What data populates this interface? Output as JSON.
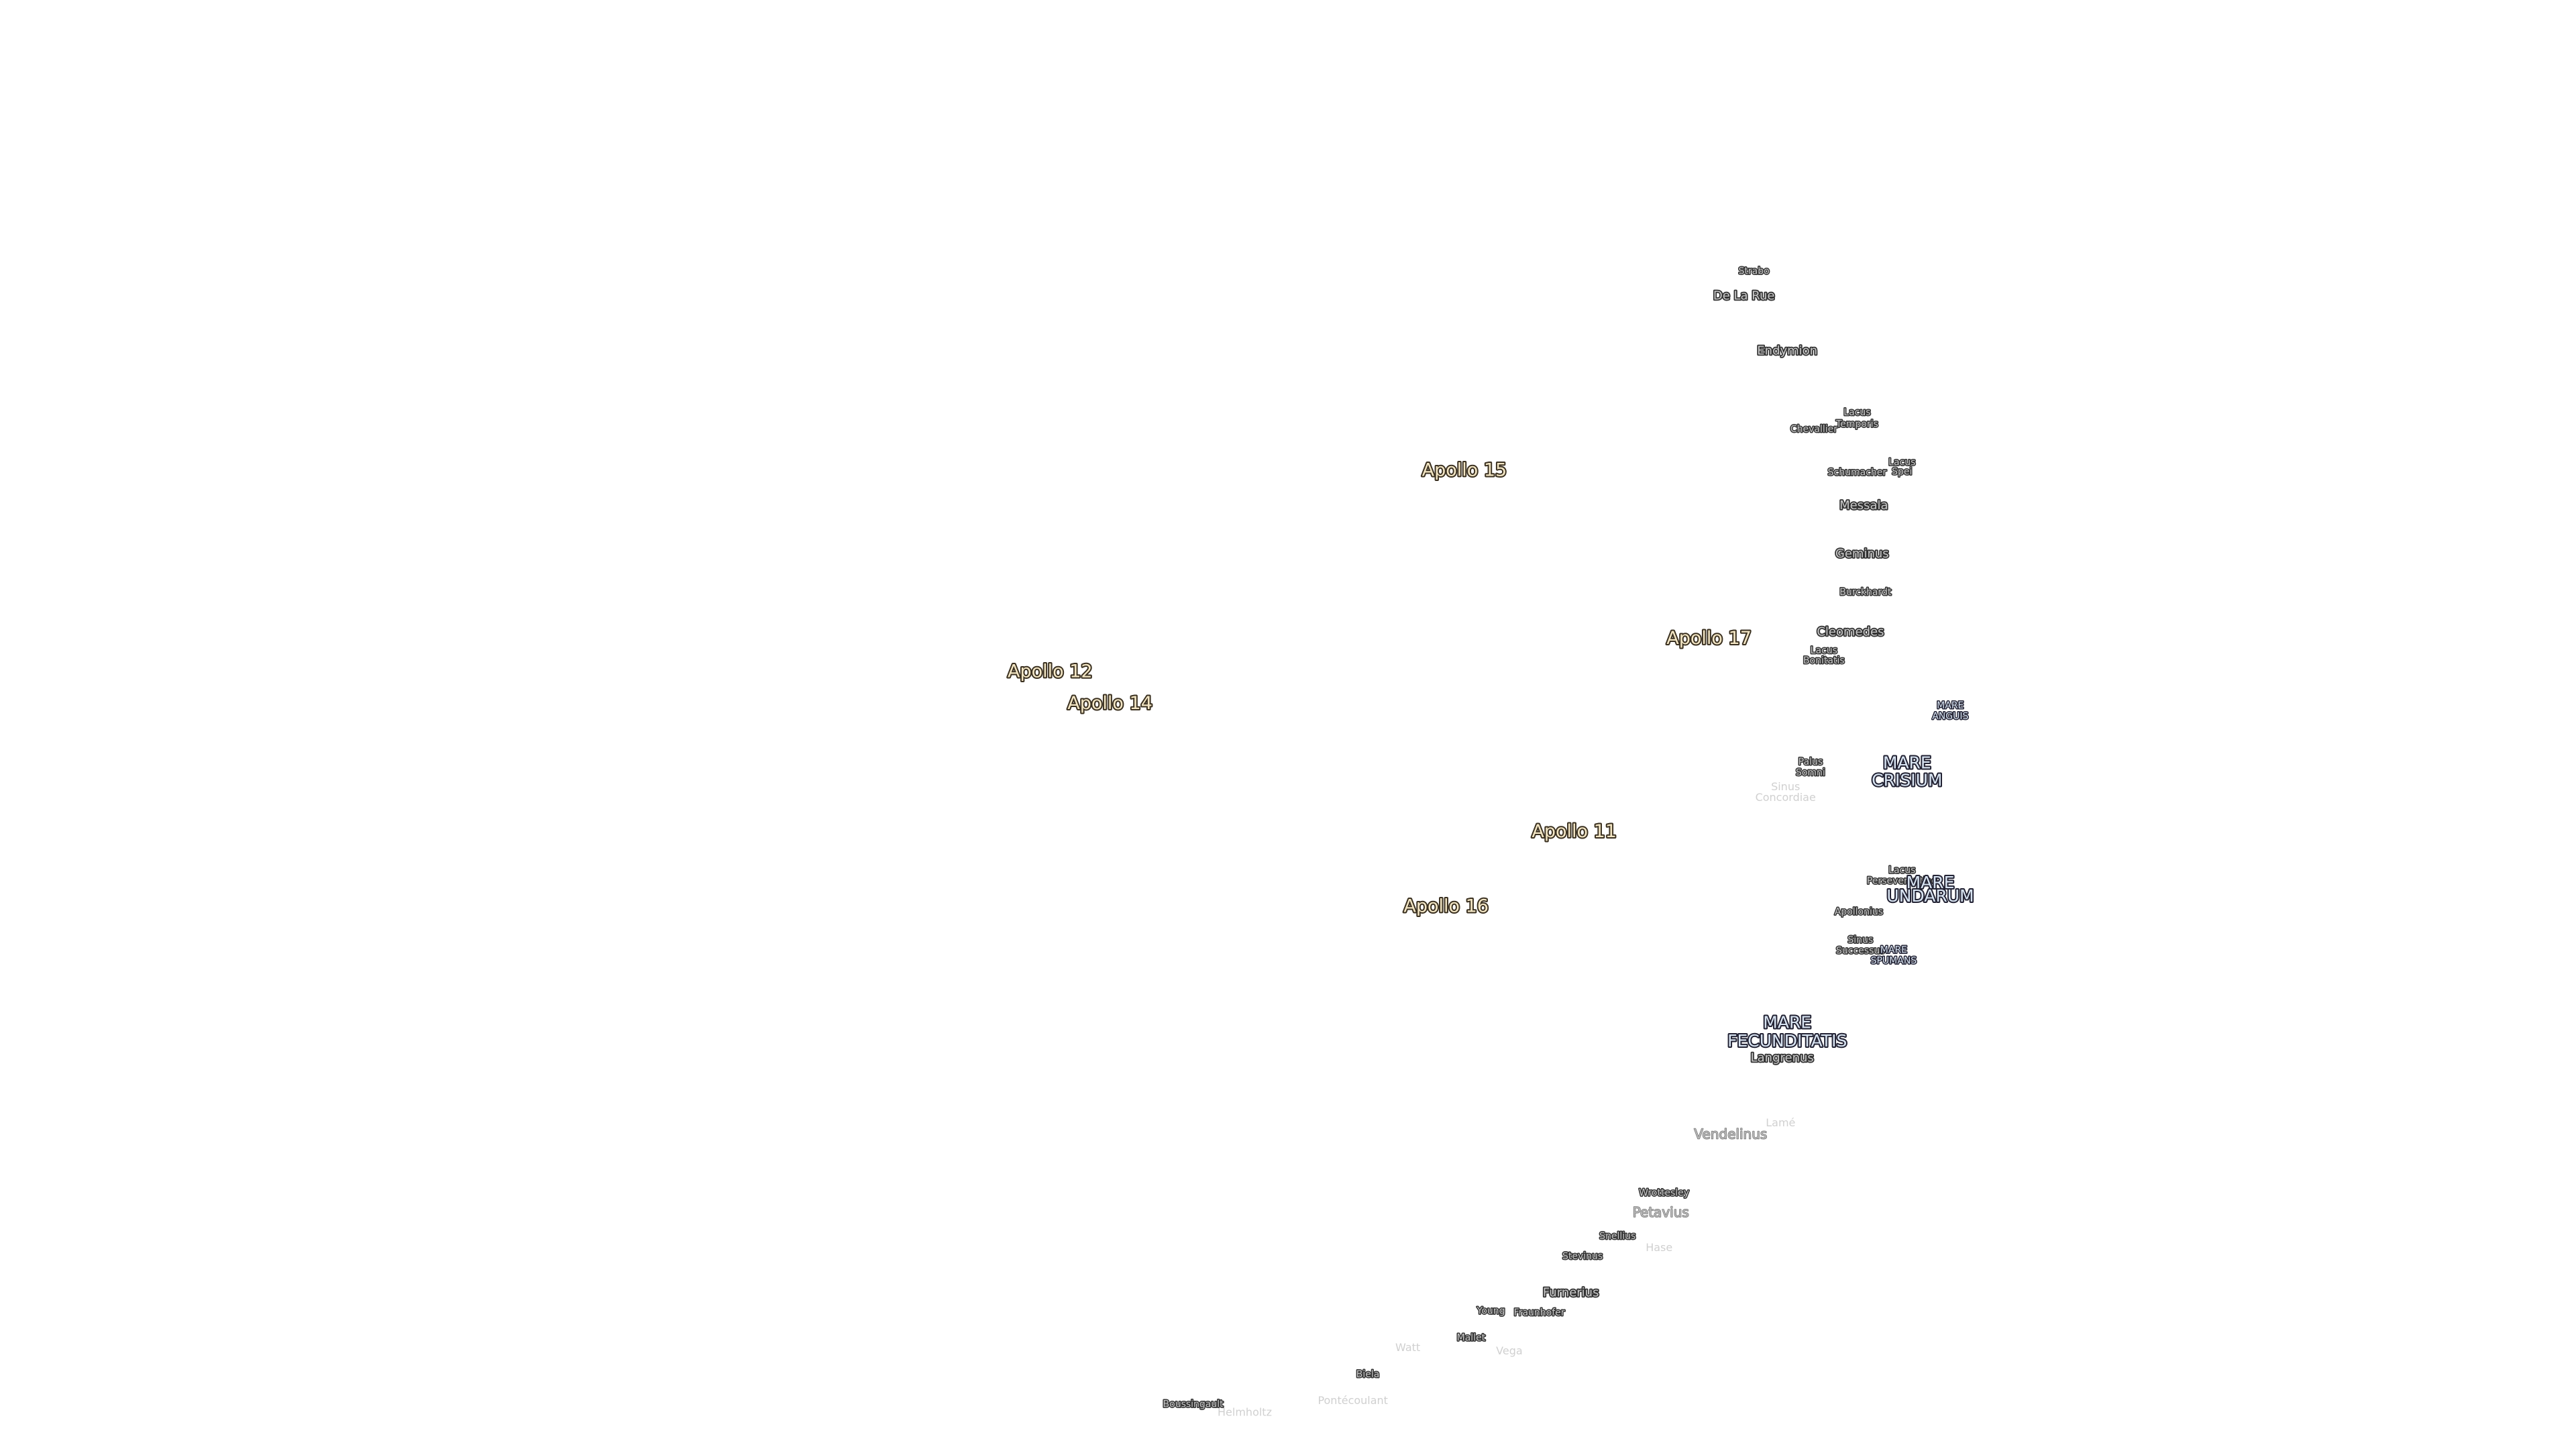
{
  "labels": [
    [
      "Strabo"
    ],
    [
      "De La Rue"
    ],
    [
      "Endymion"
    ],
    [
      "Lacus",
      "Temporis"
    ],
    [
      "Chevallier"
    ],
    [
      "Schumacher"
    ],
    [
      "Lacus",
      "Spei"
    ],
    [
      "Messala"
    ],
    [
      "Geminus"
    ],
    [
      "Burckhardt"
    ],
    [
      "Cleomedes"
    ],
    [
      "Lacus",
      "Bonitatis"
    ],
    [
      "Apollo 15"
    ],
    [
      "Apollo 17"
    ],
    [
      "Apollo 12"
    ],
    [
      "Apollo 14"
    ],
    [
      "Apollo 11"
    ],
    [
      "Apollo 16"
    ],
    [
      "MARE",
      "ANGUIS"
    ],
    [
      "Palus",
      "Somni"
    ],
    [
      "MARE",
      "CRISIUM"
    ],
    [
      "Sinus",
      "Concordiae"
    ],
    [
      "Lacus",
      "Perseverantiae"
    ],
    [
      "MARE",
      "UNDARUM"
    ],
    [
      "Apollonius"
    ],
    [
      "Sinus",
      "Successus"
    ],
    [
      "MARE",
      "SPUMANS"
    ],
    [
      "MARE",
      "FECUNDITATIS"
    ],
    [
      "Langrenus"
    ],
    [
      "Lamé"
    ],
    [
      "Vendelinus"
    ],
    [
      "Wrottesley"
    ],
    [
      "Petavius"
    ],
    [
      "Snellius"
    ],
    [
      "Hase"
    ],
    [
      "Stevinus"
    ],
    [
      "Furnerius"
    ],
    [
      "Young"
    ],
    [
      "Fraunhofer"
    ],
    [
      "Mallet"
    ],
    [
      "Vega"
    ],
    [
      "Watt"
    ],
    [
      "Biela"
    ],
    [
      "Boussingault"
    ],
    [
      "Helmholtz"
    ],
    [
      "Pontécoulant"
    ]
  ]
}
